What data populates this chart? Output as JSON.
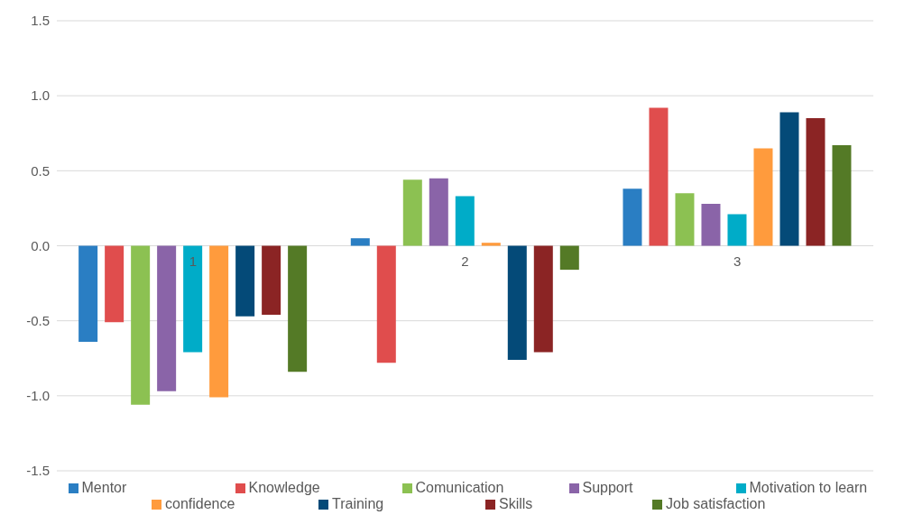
{
  "chart_data": {
    "type": "bar",
    "categories": [
      "1",
      "2",
      "3"
    ],
    "series": [
      {
        "name": "Mentor",
        "color": "#2a7ec3",
        "values": [
          -0.64,
          0.05,
          0.38
        ]
      },
      {
        "name": "Knowledge",
        "color": "#e04d4d",
        "values": [
          -0.51,
          -0.78,
          0.92
        ]
      },
      {
        "name": "Comunication",
        "color": "#8cc152",
        "values": [
          -1.06,
          0.44,
          0.35
        ]
      },
      {
        "name": "Support",
        "color": "#8a64a8",
        "values": [
          -0.97,
          0.45,
          0.28
        ]
      },
      {
        "name": "Motivation to learn",
        "color": "#00acc8",
        "values": [
          -0.71,
          0.33,
          0.21
        ]
      },
      {
        "name": "confidence",
        "color": "#ff9b3d",
        "values": [
          -1.01,
          0.02,
          0.65
        ]
      },
      {
        "name": "Training",
        "color": "#044a78",
        "values": [
          -0.47,
          -0.76,
          0.89
        ]
      },
      {
        "name": "Skills",
        "color": "#8b2424",
        "values": [
          -0.46,
          -0.71,
          0.85
        ]
      },
      {
        "name": "Job satisfaction",
        "color": "#547a26",
        "values": [
          -0.84,
          -0.16,
          0.67
        ]
      }
    ],
    "ylim": [
      -1.5,
      1.5
    ],
    "yticks": [
      -1.5,
      {
        "value": -1,
        "label": "-1.0"
      },
      -0.5,
      {
        "value": 0,
        "label": "0.0"
      },
      0.5,
      {
        "value": 1,
        "label": "1.0"
      },
      1.5
    ],
    "grid": "y",
    "legend": "bottom"
  }
}
